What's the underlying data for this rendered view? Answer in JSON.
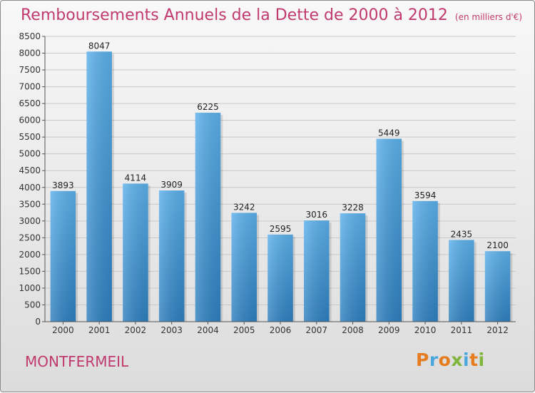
{
  "header": {
    "title": "Remboursements Annuels de la Dette de 2000 à 2012",
    "unit": "(en milliers d'€)"
  },
  "footer": {
    "commune": "MONTFERMEIL",
    "logo_letters": [
      "P",
      "r",
      "o",
      "x",
      "i",
      "t",
      "i"
    ]
  },
  "colors": {
    "title": "#c03a6e",
    "bar_top": "#5cb0ea",
    "bar_bottom": "#2e7fbf",
    "logo": [
      "#e57c1f",
      "#4aa7dd",
      "#e57c1f",
      "#7fb53a",
      "#4aa7dd",
      "#e57c1f",
      "#7fb53a"
    ]
  },
  "chart_data": {
    "type": "bar",
    "categories": [
      "2000",
      "2001",
      "2002",
      "2003",
      "2004",
      "2005",
      "2006",
      "2007",
      "2008",
      "2009",
      "2010",
      "2011",
      "2012"
    ],
    "values": [
      3893,
      8047,
      4114,
      3909,
      6225,
      3242,
      2595,
      3016,
      3228,
      5449,
      3594,
      2435,
      2100
    ],
    "title": "Remboursements Annuels de la Dette de 2000 à 2012",
    "xlabel": "",
    "ylabel": "",
    "ylim": [
      0,
      8500
    ],
    "yticks": [
      0,
      500,
      1000,
      1500,
      2000,
      2500,
      3000,
      3500,
      4000,
      4500,
      5000,
      5500,
      6000,
      6500,
      7000,
      7500,
      8000,
      8500
    ],
    "grid": true
  }
}
